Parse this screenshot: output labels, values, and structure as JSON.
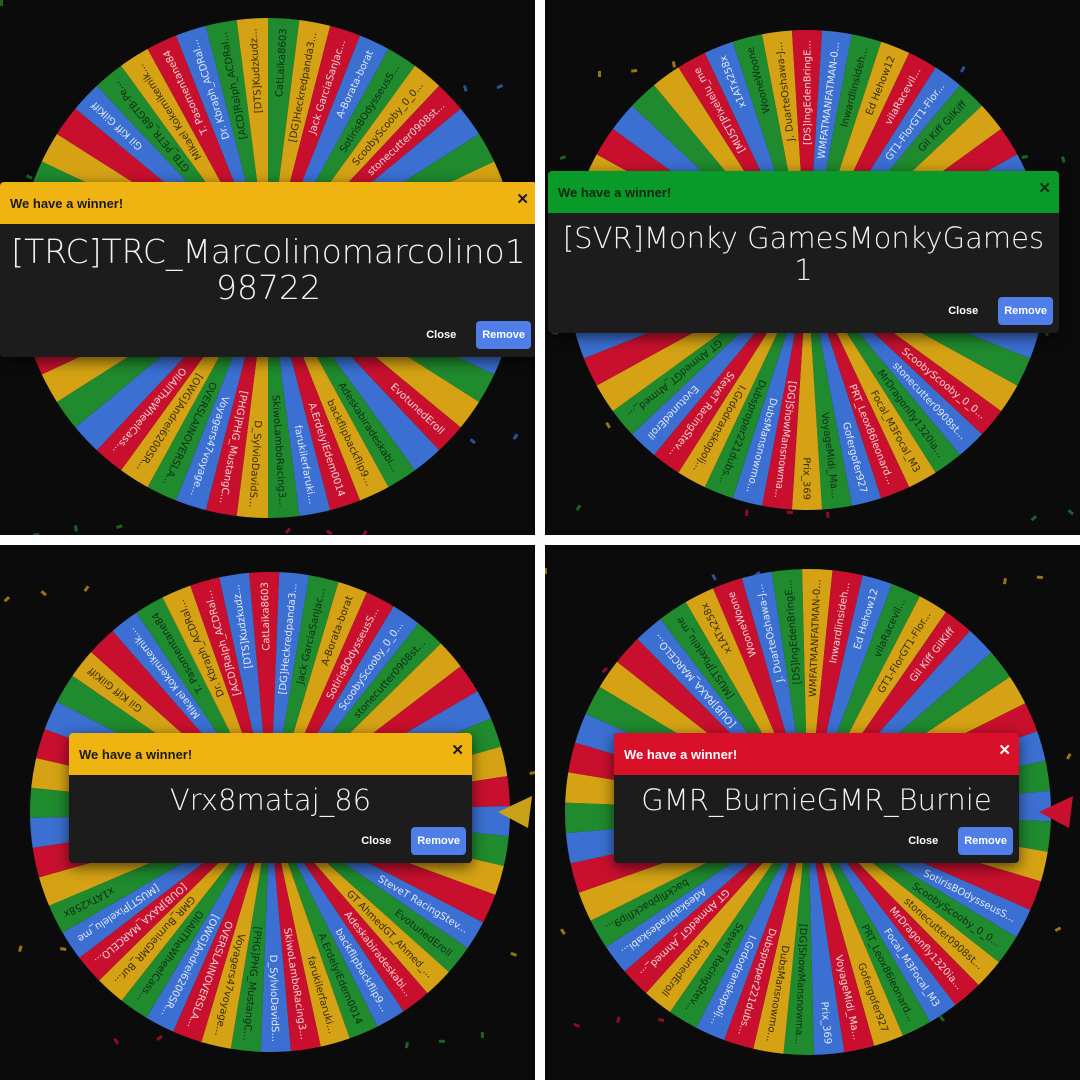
{
  "slice_colors": [
    "#1f8a2e",
    "#d4a214",
    "#c8102e",
    "#3b6fd1"
  ],
  "slice_text_colors": [
    "#0e2e12",
    "#3a2c05",
    "#f3d6d6",
    "#dfe8fa"
  ],
  "wheel_entries": [
    "CatLaika8603",
    "[DG]Heckredpanda3...",
    "Jack GarciaSanJac...",
    "A-Borata-borat",
    "SotirisBOdysseusS...",
    "ScoobyScooby_0_0...",
    "stonecutter0908st...",
    "MrDragonfly1320ia...",
    "Focal_M3Focal_M3",
    "PRT_Leox86leonard...",
    "Gofergofer927",
    "VoyageMidi_Ma...",
    "Prix_369",
    "[DG]ShowMansnowma...",
    "DubsMansnowmo...",
    "Dubsproper221dubs...",
    "I.Grdodranskopolj...",
    "SteveT RacingStev...",
    "EvotunedEroll",
    "GT AhmedGT_Ahmed_...",
    "Adeskabiradeskabi...",
    "backflipbackflip9...",
    "A.ErdelyiEdem0014",
    "farukilerfaruki...",
    "SkiwoLamboRacing3...",
    "D_SylvioDavidS...",
    "[PHG]PHG_MustangC...",
    "Voyagers47voyage...",
    "OVERSLAINOVERSLA...",
    "[OWG]Andrei6200SR...",
    "OliAllTheWheelCass...",
    "GMR_BurnieGMR_Bur...",
    "[OUB]RAXA_MARCELO...",
    "[MUST]Pixelelu_me",
    "x1ATx258x",
    "WooneWoone",
    "J. DuarteOshawa-J...",
    "[DS]IngEdenBringE...",
    "WMFATMANFATMAN-0...",
    "Inwardlinsideh...",
    "Ed Hehow12",
    "vilaRacevil...",
    "GT1-FlorGT1-Flor...",
    "Gil Kiff GilKiff",
    "GTB_PETR_68GTB-Pe...",
    "Mikael Kokemikemik...",
    "T. Pasomentane84",
    "Dr. Kbraph_ACDRal...",
    "[ACD]Ralph_ACDRal...",
    "[DTS]Kudzkudz..."
  ],
  "panels": [
    {
      "header_color": "#f0b412",
      "title_color": "#1a1a1a",
      "title": "We have a winner!",
      "winner": "[TRC]TRC_Marcolinomarcolino198722",
      "close_label": "Close",
      "remove_label": "Remove",
      "pointer_color": null
    },
    {
      "header_color": "#0a9a2a",
      "title_color": "#102810",
      "title": "We have a winner!",
      "winner": "[SVR]Monky GamesMonkyGames1",
      "close_label": "Close",
      "remove_label": "Remove",
      "pointer_color": null
    },
    {
      "header_color": "#f0b412",
      "title_color": "#1a1a1a",
      "title": "We have a winner!",
      "winner": "Vrx8mataj_86",
      "close_label": "Close",
      "remove_label": "Remove",
      "pointer_color": "#c9a019"
    },
    {
      "header_color": "#d9102a",
      "title_color": "#ffffff",
      "title": "We have a winner!",
      "winner": "GMR_BurnieGMR_Burnie",
      "close_label": "Close",
      "remove_label": "Remove",
      "pointer_color": "#c8102e"
    }
  ]
}
